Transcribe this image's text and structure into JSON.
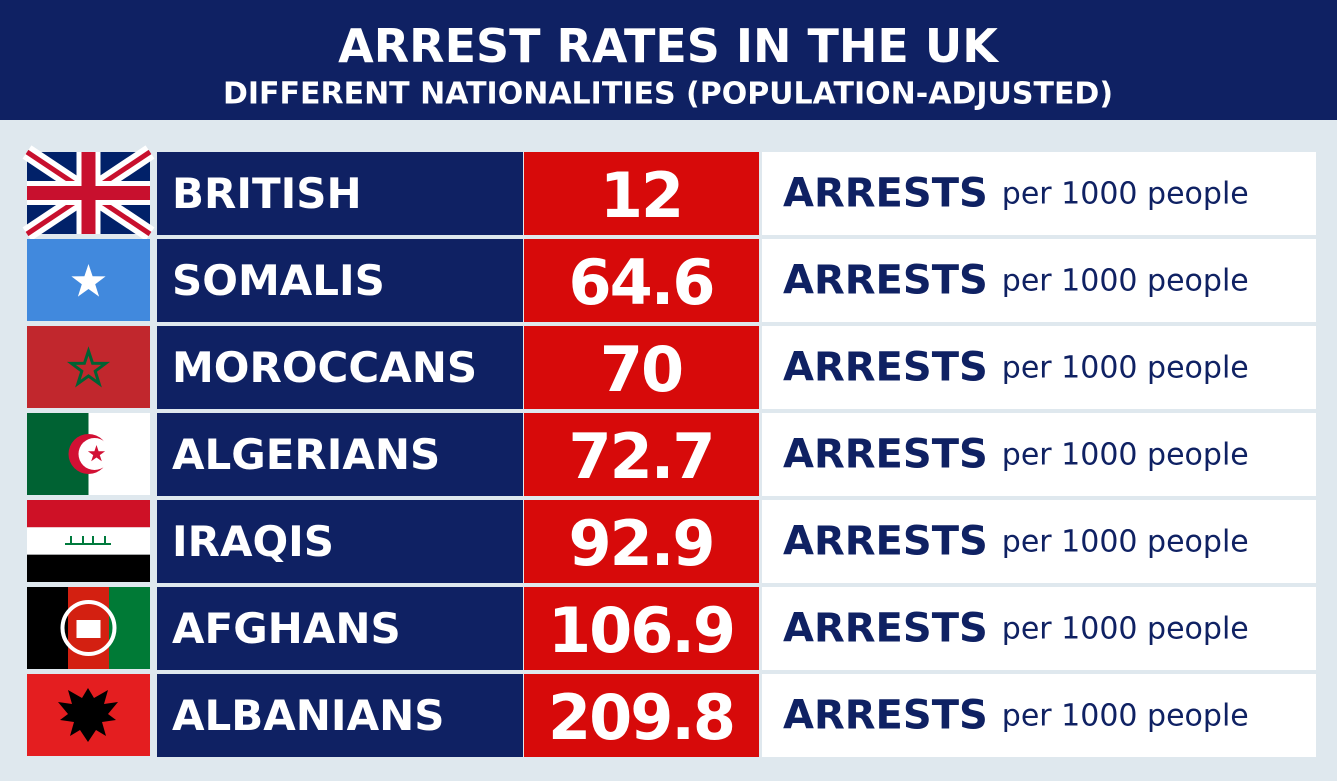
{
  "header": {
    "title": "ARREST RATES IN THE UK",
    "subtitle": "DIFFERENT NATIONALITIES (POPULATION-ADJUSTED)"
  },
  "rows": [
    {
      "nationality": "BRITISH",
      "rate": "12",
      "unit": "ARRESTS",
      "per": "per 1000 people"
    },
    {
      "nationality": "SOMALIS",
      "rate": "64.6",
      "unit": "ARRESTS",
      "per": "per 1000 people"
    },
    {
      "nationality": "MOROCCANS",
      "rate": "70",
      "unit": "ARRESTS",
      "per": "per 1000 people"
    },
    {
      "nationality": "ALGERIANS",
      "rate": "72.7",
      "unit": "ARRESTS",
      "per": "per 1000 people"
    },
    {
      "nationality": "IRAQIS",
      "rate": "92.9",
      "unit": "ARRESTS",
      "per": "per 1000 people"
    },
    {
      "nationality": "AFGHANS",
      "rate": "106.9",
      "unit": "ARRESTS",
      "per": "per 1000 people"
    },
    {
      "nationality": "ALBANIANS",
      "rate": "209.8",
      "unit": "ARRESTS",
      "per": "per 1000 people"
    }
  ]
}
